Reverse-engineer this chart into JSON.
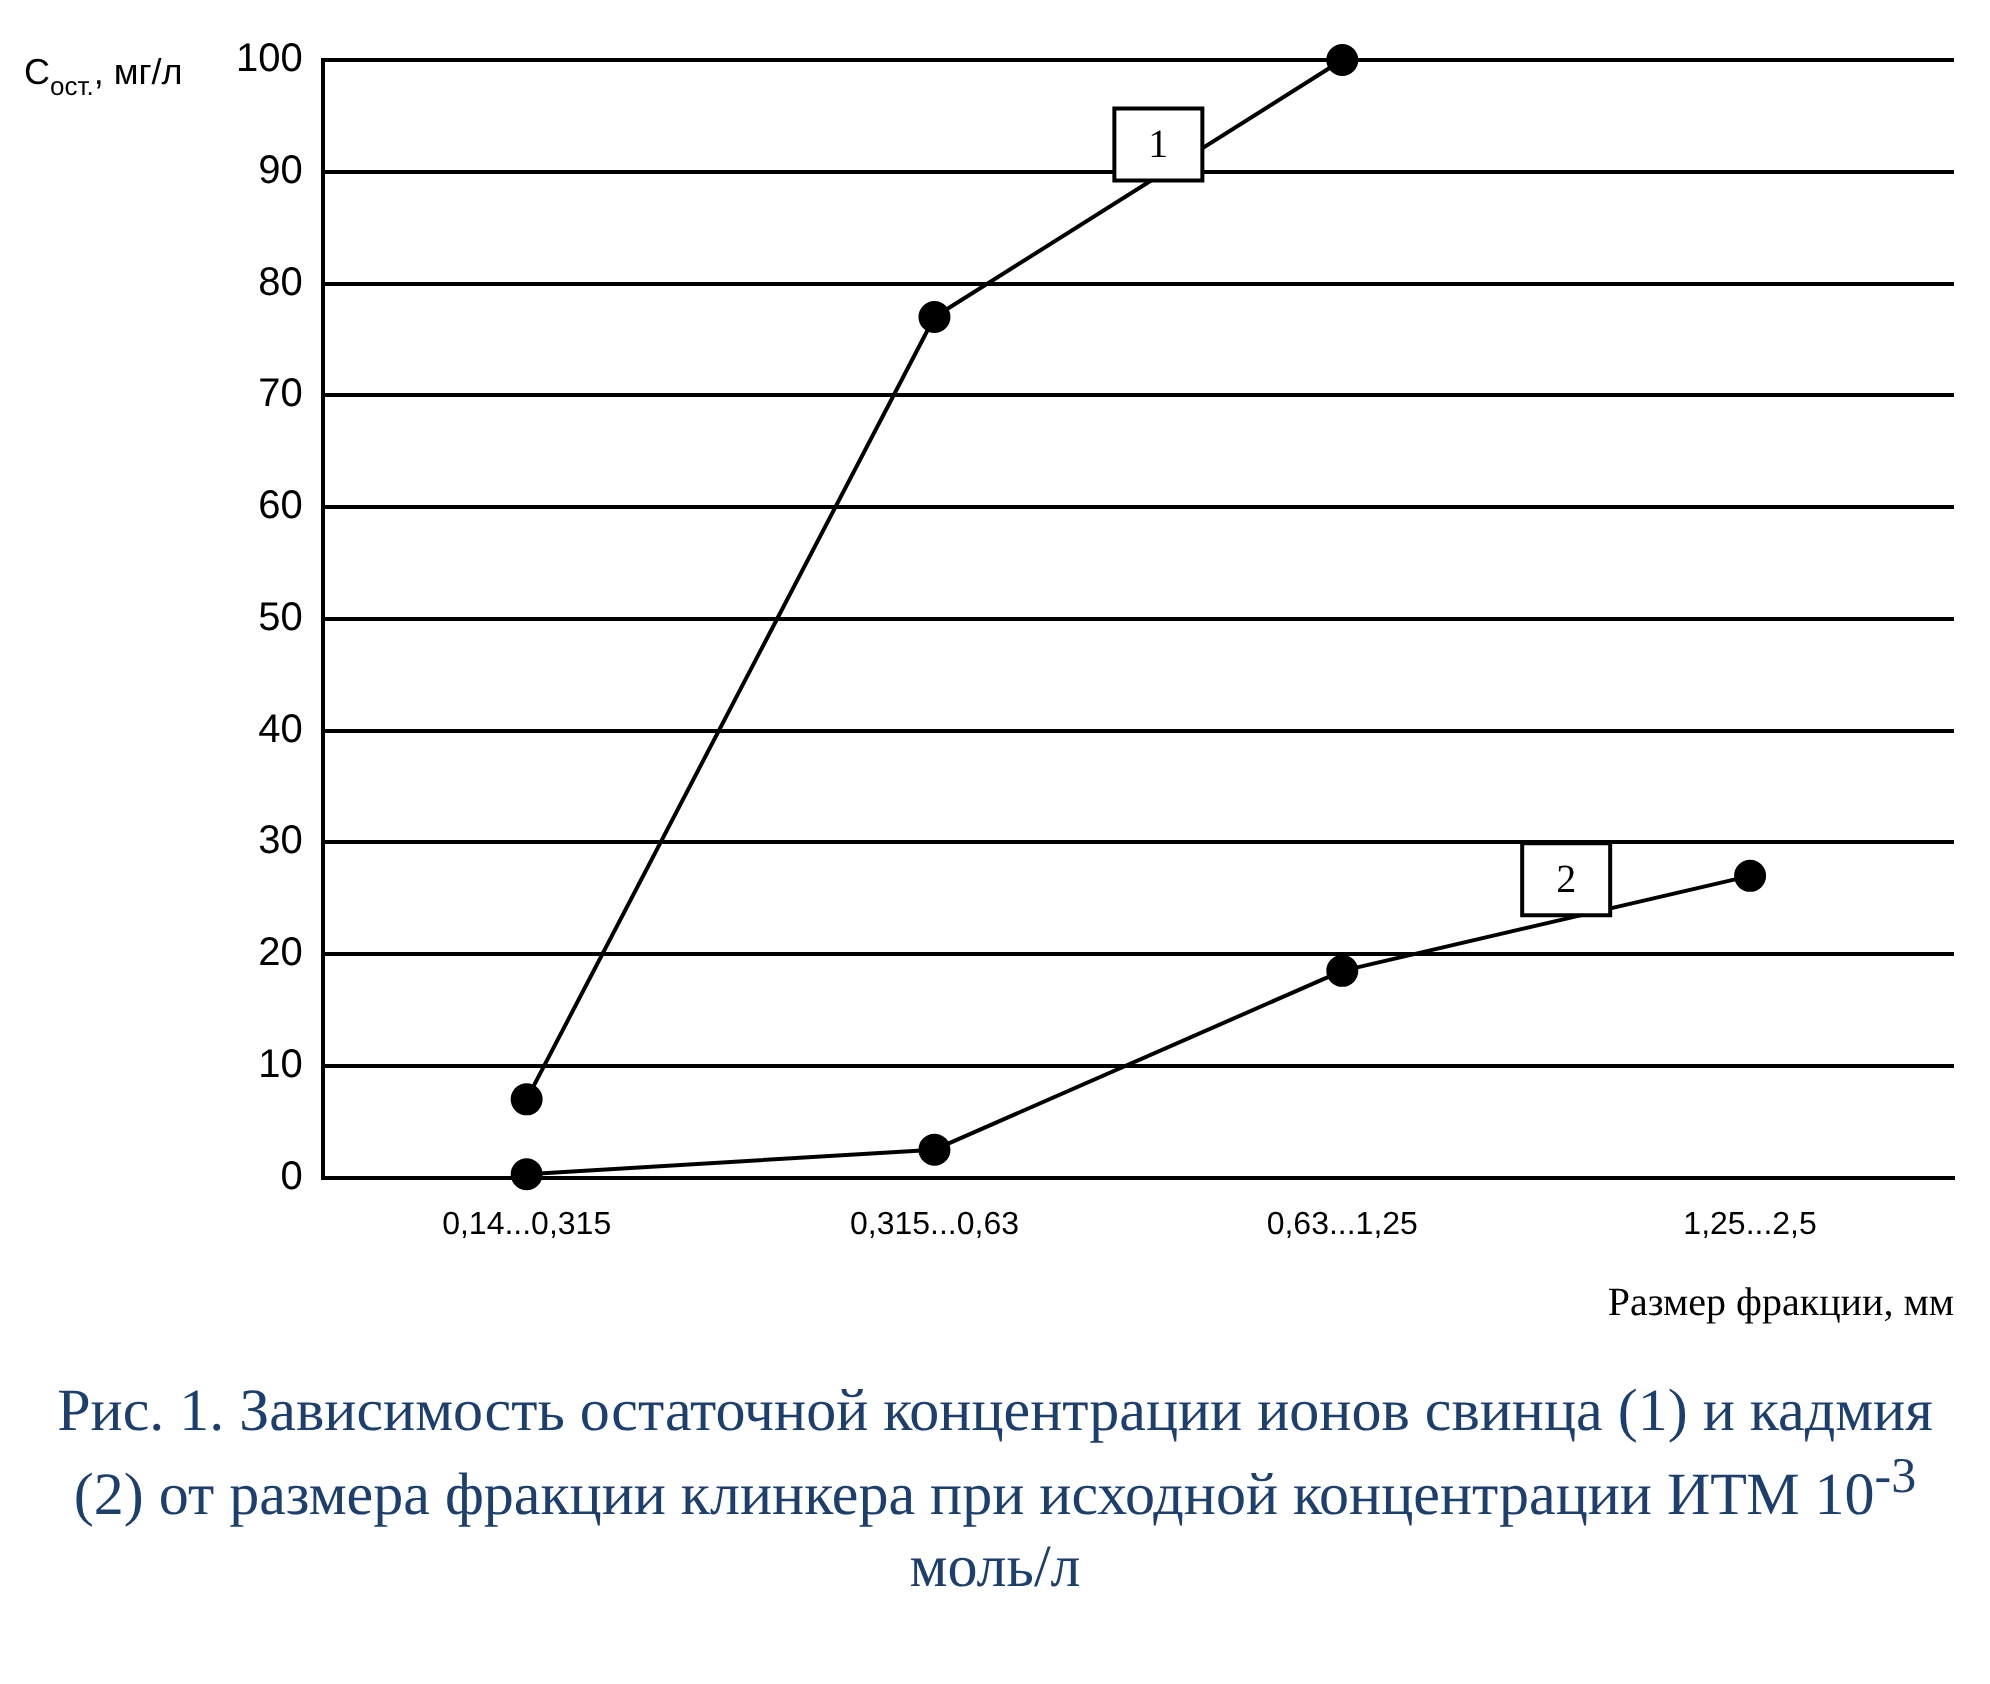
{
  "chart_data": {
    "type": "line",
    "title": "Рис. 1. Зависимость остаточной концентрации ионов свинца (1) и кадмия (2) от размера фракции клинкера при исходной концентрации ИТМ 10$^{-3}$ моль/л",
    "ylabel": "C$_{ост.}$, мг/л",
    "xlabel": "Размер фракции, мм",
    "categories": [
      "0,14...0,315",
      "0,315...0,63",
      "0,63...1,25",
      "1,25...2,5"
    ],
    "series": [
      {
        "name": "1",
        "color": "#000000",
        "values": [
          7,
          77,
          100,
          null
        ]
      },
      {
        "name": "2",
        "color": "#000000",
        "values": [
          0.3,
          2.5,
          18.5,
          27
        ]
      }
    ],
    "ylim": [
      0,
      100
    ],
    "yticks": [
      0,
      10,
      20,
      30,
      40,
      50,
      60,
      70,
      80,
      90,
      100
    ],
    "grid": "y",
    "marker": "circle",
    "line_style": "solid",
    "legend": false
  }
}
